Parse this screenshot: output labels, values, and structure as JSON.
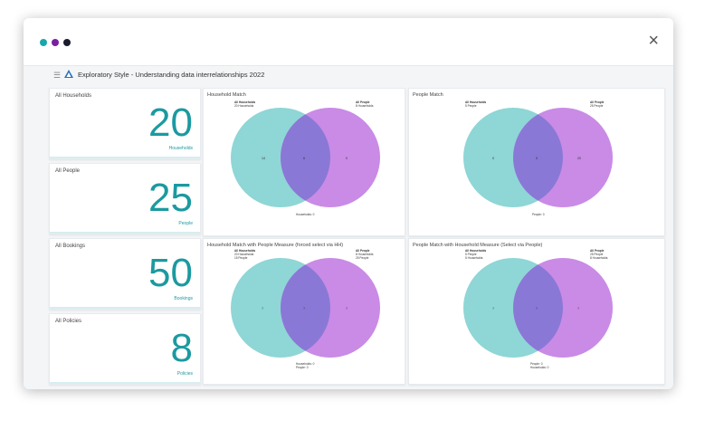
{
  "window": {
    "dots": [
      {
        "color": "#18a7ad"
      },
      {
        "color": "#7a1fa2"
      },
      {
        "color": "#1a1a2e"
      }
    ],
    "close_icon": "×"
  },
  "app": {
    "title": "Exploratory Style - Understanding data interrelationships 2022"
  },
  "kpis": [
    {
      "title": "All Households",
      "value": "20",
      "unit": "Households"
    },
    {
      "title": "All People",
      "value": "25",
      "unit": "People"
    },
    {
      "title": "All Bookings",
      "value": "50",
      "unit": "Bookings"
    },
    {
      "title": "All Policies",
      "value": "8",
      "unit": "Policies"
    }
  ],
  "venns": [
    {
      "title": "Household Match",
      "left_label": [
        "All Households",
        "20 Households"
      ],
      "right_label": [
        "All People",
        "8 Households"
      ],
      "counts": [
        "14",
        "6",
        "0"
      ],
      "footer": [
        "Households: 0"
      ]
    },
    {
      "title": "People Match",
      "left_label": [
        "All Households",
        "5 People"
      ],
      "right_label": [
        "All People",
        "25 People"
      ],
      "counts": [
        "0",
        "5",
        "20"
      ],
      "footer": [
        "People: 0"
      ]
    },
    {
      "title": "Household Match with People Measure (forced select via HH)",
      "left_label": [
        "All Households",
        "20 Households",
        "15 People"
      ],
      "right_label": [
        "All People",
        "8 Households",
        "25 People"
      ],
      "counts": [
        "?",
        "?",
        "?"
      ],
      "footer": [
        "Households: 0",
        "People: 0"
      ]
    },
    {
      "title": "People Match with Household Measure (Select via People)",
      "left_label": [
        "All Households",
        "5 People",
        "5 Households"
      ],
      "right_label": [
        "All People",
        "25 People",
        "8 Households"
      ],
      "counts": [
        "?",
        "?",
        "?"
      ],
      "footer": [
        "People: 0",
        "Households: 0"
      ]
    }
  ],
  "colors": {
    "teal_circle": "#8fd6d6",
    "purple_circle": "#c98be6",
    "overlap": "#8a78d6",
    "accent": "#1b9aa0"
  }
}
